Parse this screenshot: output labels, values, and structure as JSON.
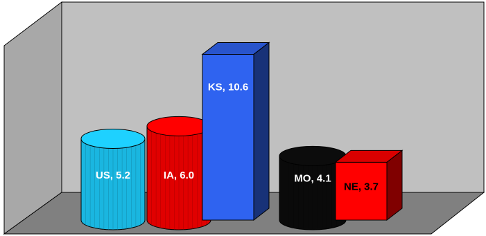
{
  "chart_data": {
    "type": "bar",
    "title": "",
    "xlabel": "",
    "ylabel": "",
    "ylim": [
      0,
      12
    ],
    "grid": false,
    "legend": "none",
    "bars": [
      {
        "category": "US",
        "value": 5.2,
        "label": "US, 5.2",
        "shape": "cylinder",
        "color": "#1ab6e0",
        "label_color": "#ffffff"
      },
      {
        "category": "IA",
        "value": 6.0,
        "label": "IA, 6.0",
        "shape": "cylinder",
        "color": "#e00000",
        "label_color": "#ffffff"
      },
      {
        "category": "KS",
        "value": 10.6,
        "label": "KS, 10.6",
        "shape": "box",
        "color": "#2f63f0",
        "label_color": "#ffffff"
      },
      {
        "category": "MO",
        "value": 4.1,
        "label": "MO, 4.1",
        "shape": "cylinder",
        "color": "#0a0a0a",
        "label_color": "#ffffff"
      },
      {
        "category": "NE",
        "value": 3.7,
        "label": "NE, 3.7",
        "shape": "box",
        "color": "#ff0000",
        "label_color": "#000000"
      }
    ],
    "colors": {
      "wall": "#c0c0c0",
      "floor": "#808080",
      "outline": "#000000"
    }
  }
}
